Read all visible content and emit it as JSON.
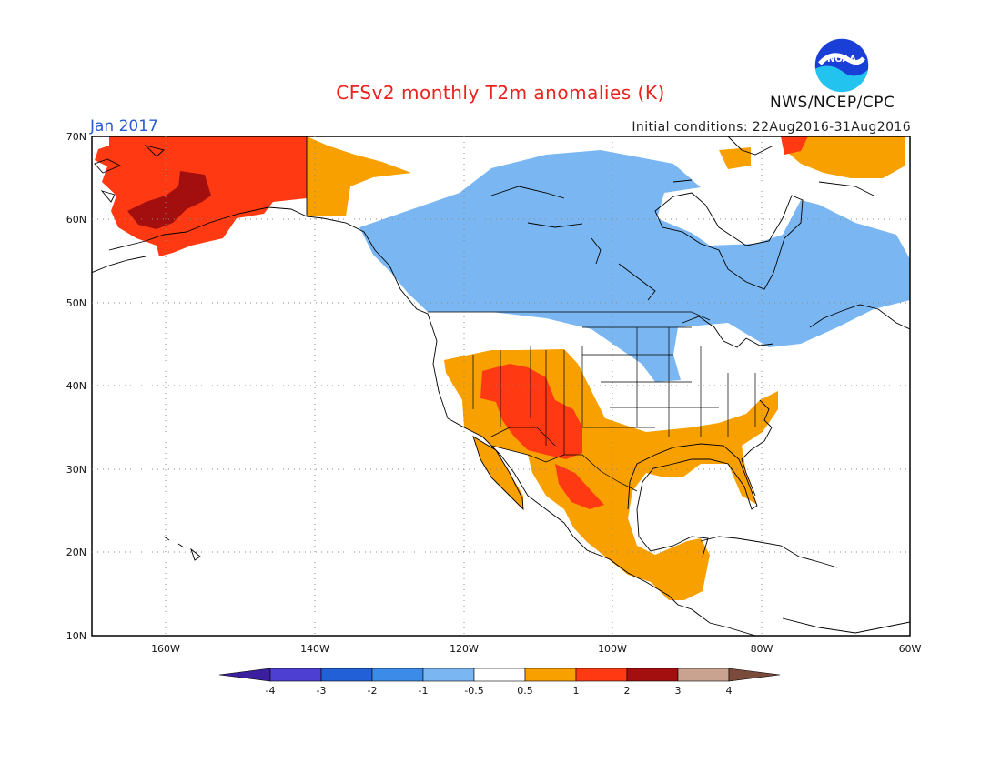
{
  "header": {
    "title": "CFSv2 monthly T2m anomalies (K)",
    "period": "Jan 2017",
    "initial_conditions": "Initial conditions: 22Aug2016-31Aug2016",
    "agency": "NWS/NCEP/CPC",
    "logo_text": "NOAA",
    "logo_icon": "noaa-logo-icon"
  },
  "map": {
    "lon_range": [
      -170,
      -60
    ],
    "lat_range": [
      10,
      70
    ],
    "lon_ticks": [
      "160W",
      "140W",
      "120W",
      "100W",
      "80W",
      "60W"
    ],
    "lat_ticks": [
      "70N",
      "60N",
      "50N",
      "40N",
      "30N",
      "20N",
      "10N"
    ],
    "gridlines": "dotted",
    "anomaly_regions": [
      {
        "area": "Alaska",
        "category": "1 to 2"
      },
      {
        "area": "SW Alaska",
        "category": "2 to 3"
      },
      {
        "area": "Yukon",
        "category": "0.5 to 1"
      },
      {
        "area": "Southern Canada",
        "category": "-1 to -0.5"
      },
      {
        "area": "Upper Midwest",
        "category": "-1 to -0.5"
      },
      {
        "area": "Southwest US",
        "category": "1 to 2"
      },
      {
        "area": "Southern US and Mexico",
        "category": "0.5 to 1"
      },
      {
        "area": "Southeast US",
        "category": "0.5 to 1"
      },
      {
        "area": "Northern Quebec",
        "category": "0.5 to 1"
      }
    ]
  },
  "colorbar": {
    "labels": [
      "-4",
      "-3",
      "-2",
      "-1",
      "-0.5",
      "0.5",
      "1",
      "2",
      "3",
      "4"
    ],
    "colors": [
      "#3b1f9e",
      "#4c3fd1",
      "#2160d6",
      "#3d8be8",
      "#7ab7f2",
      "#ffffff",
      "#f7a000",
      "#ff3a12",
      "#a30f0f",
      "#c9a290",
      "#7a4a3a"
    ]
  },
  "colors": {
    "title": "#e8221c",
    "period": "#2b59d6",
    "warm_05_1": "#f7a000",
    "warm_1_2": "#ff3a12",
    "warm_2_3": "#a30f0f",
    "cool_05_1": "#7ab7f2"
  }
}
